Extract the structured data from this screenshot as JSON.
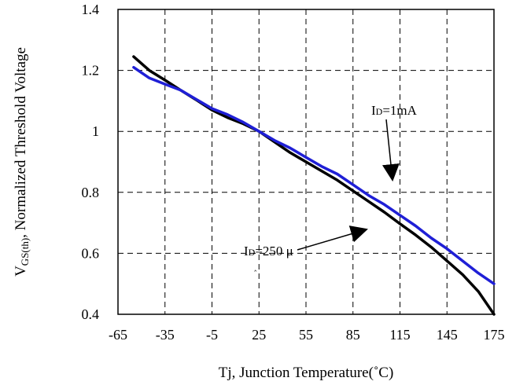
{
  "chart_data": {
    "type": "line",
    "xlabel": "Tj, Junction Temperature(˚C)",
    "ylabel": "V",
    "ylabel_sub": "GS(th)",
    "ylabel_rest": ", Normalized Threshold Voltage",
    "xlim": [
      -65,
      175
    ],
    "ylim": [
      0.4,
      1.4
    ],
    "xticks": [
      -65,
      -35,
      -5,
      25,
      55,
      85,
      115,
      145,
      175
    ],
    "xtick_labels": [
      "-65",
      "-35",
      "-5",
      "25",
      "55",
      "85",
      "115",
      "145",
      "175"
    ],
    "yticks": [
      0.4,
      0.6,
      0.8,
      1.0,
      1.2,
      1.4
    ],
    "ytick_labels": [
      "0.4",
      "0.6",
      "0.8",
      "1",
      "1.2",
      "1.4"
    ],
    "grid": true,
    "series": [
      {
        "color": "#000000",
        "x": [
          -55,
          -45,
          -35,
          -25,
          -15,
          -5,
          5,
          15,
          25,
          35,
          45,
          55,
          65,
          75,
          85,
          95,
          105,
          115,
          125,
          135,
          145,
          155,
          165,
          175
        ],
        "y": [
          1.245,
          1.2,
          1.168,
          1.135,
          1.103,
          1.07,
          1.045,
          1.025,
          1.0,
          0.965,
          0.93,
          0.9,
          0.87,
          0.84,
          0.805,
          0.77,
          0.735,
          0.697,
          0.66,
          0.62,
          0.575,
          0.53,
          0.475,
          0.4
        ]
      },
      {
        "color": "#1f1fd6",
        "x": [
          -55,
          -45,
          -35,
          -25,
          -15,
          -5,
          5,
          15,
          25,
          35,
          45,
          55,
          65,
          75,
          85,
          95,
          105,
          115,
          125,
          135,
          145,
          155,
          165,
          175
        ],
        "y": [
          1.21,
          1.175,
          1.155,
          1.135,
          1.105,
          1.075,
          1.055,
          1.03,
          1.0,
          0.97,
          0.945,
          0.915,
          0.885,
          0.86,
          0.825,
          0.79,
          0.76,
          0.725,
          0.69,
          0.65,
          0.615,
          0.575,
          0.535,
          0.5
        ]
      }
    ],
    "annotations": [
      {
        "label_main": "I",
        "label_sub": "D",
        "label_rest": "=1mA"
      },
      {
        "label_main": "I",
        "label_sub": "D",
        "label_rest": "=250 μ"
      }
    ],
    "stray_mark": "‸"
  }
}
